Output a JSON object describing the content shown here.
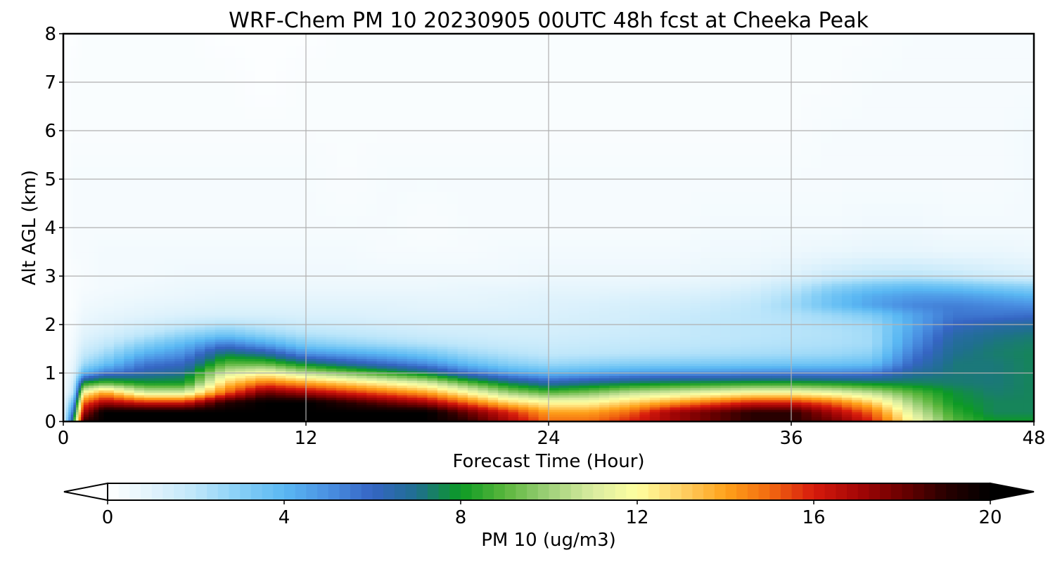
{
  "chart_data": {
    "type": "heatmap",
    "title": "WRF-Chem PM 10  20230905 00UTC 48h fcst at Cheeka Peak",
    "xlabel": "Forecast Time (Hour)",
    "ylabel": "Alt AGL (km)",
    "xlim": [
      0,
      48
    ],
    "ylim": [
      0,
      8
    ],
    "xticks": [
      0,
      12,
      24,
      36,
      48
    ],
    "yticks": [
      0,
      1,
      2,
      3,
      4,
      5,
      6,
      7,
      8
    ],
    "grid": true,
    "colorbar": {
      "label": "PM 10  (ug/m3)",
      "min": 0,
      "max": 20,
      "ticks": [
        0,
        4,
        8,
        12,
        16,
        20
      ],
      "extend": "both",
      "colors": [
        "#ffffff",
        "#e1f3fc",
        "#bde6fa",
        "#86cff6",
        "#5ab8f3",
        "#4a90e2",
        "#3565c3",
        "#1f6f8f",
        "#0c9a24",
        "#5ab63c",
        "#9fd07a",
        "#d9eca0",
        "#ffffa0",
        "#ffd166",
        "#ffa21a",
        "#f26a10",
        "#d61a0c",
        "#a50606",
        "#6b0000",
        "#280000",
        "#000000"
      ]
    },
    "x": [
      0,
      0.5,
      1,
      2,
      4,
      6,
      8,
      10,
      12,
      14,
      16,
      18,
      20,
      22,
      24,
      26,
      28,
      30,
      32,
      34,
      36,
      38,
      40,
      42,
      44,
      46,
      48
    ],
    "y": [
      0,
      0.2,
      0.4,
      0.6,
      0.8,
      1,
      1.2,
      1.4,
      1.6,
      1.8,
      2,
      2.2,
      2.4,
      2.6,
      2.8,
      3,
      3.5,
      4,
      5,
      6,
      7,
      8
    ],
    "z": [
      [
        0.5,
        8,
        19,
        20,
        20,
        20,
        20,
        20,
        20,
        20,
        20,
        20,
        19,
        17,
        15,
        15,
        16,
        17,
        18,
        19,
        19,
        18,
        16,
        12,
        9,
        8,
        8
      ],
      [
        0.5,
        6,
        17,
        20,
        20,
        20,
        20,
        20,
        20,
        20,
        20,
        20,
        18,
        16,
        14,
        14,
        15,
        17,
        18,
        19,
        19,
        17,
        15,
        11,
        8.5,
        7.5,
        7.5
      ],
      [
        0.4,
        4,
        15,
        17,
        16,
        16,
        19,
        20,
        20,
        19,
        18,
        17,
        15,
        13,
        12,
        12,
        13,
        14,
        15,
        16,
        16,
        15,
        13,
        10,
        8,
        7.5,
        7.5
      ],
      [
        0.3,
        2,
        12,
        14,
        11,
        11,
        15,
        18,
        17,
        16,
        15,
        14,
        12,
        10,
        9,
        9.5,
        10.5,
        11,
        11.5,
        12,
        12,
        11.5,
        10.5,
        9,
        7.8,
        7.3,
        7.5
      ],
      [
        0.3,
        1.5,
        8,
        9,
        8,
        8,
        13,
        15,
        14,
        13,
        12,
        11,
        9,
        7.5,
        6.5,
        7,
        7.5,
        7.8,
        8,
        8.2,
        8.2,
        8,
        7.7,
        7.5,
        7.3,
        7.2,
        7.5
      ],
      [
        0.2,
        1,
        4,
        5.5,
        6.5,
        7,
        11,
        12,
        10.5,
        9.5,
        8.5,
        7.5,
        5.8,
        4.6,
        4,
        4.3,
        4.7,
        4.9,
        5,
        5.2,
        5.3,
        5.3,
        5.5,
        6.8,
        7.2,
        7.2,
        7.5
      ],
      [
        0.2,
        0.8,
        2.5,
        3.5,
        5.5,
        6,
        9,
        9,
        7.6,
        6.6,
        5.8,
        5,
        3.8,
        3,
        2.6,
        2.8,
        3,
        3.1,
        3.2,
        3.3,
        3.4,
        3.5,
        3.7,
        6,
        7.2,
        7.2,
        7.5
      ],
      [
        0.1,
        0.6,
        1.8,
        2.5,
        4.2,
        5,
        7.5,
        6.8,
        5,
        4.5,
        4,
        3.4,
        2.6,
        2.2,
        1.9,
        2,
        2.1,
        2.2,
        2.3,
        2.4,
        2.5,
        2.6,
        2.9,
        5.5,
        7,
        7.3,
        7.5
      ],
      [
        0.1,
        0.5,
        1.3,
        1.8,
        3,
        4,
        5.5,
        4.5,
        3.2,
        2.8,
        2.5,
        2.2,
        1.9,
        1.7,
        1.6,
        1.7,
        1.8,
        1.9,
        2,
        2.1,
        2.2,
        2.3,
        2.5,
        5,
        6.8,
        7.2,
        7.4
      ],
      [
        0.1,
        0.4,
        1,
        1.3,
        2,
        2.8,
        3.5,
        2.8,
        2.2,
        2,
        1.8,
        1.6,
        1.5,
        1.4,
        1.4,
        1.5,
        1.6,
        1.7,
        1.9,
        2,
        2.1,
        2.2,
        2.5,
        4.7,
        6.5,
        7,
        7.2
      ],
      [
        0.1,
        0.3,
        0.8,
        1,
        1.4,
        1.8,
        2.2,
        1.9,
        1.6,
        1.5,
        1.4,
        1.3,
        1.3,
        1.3,
        1.3,
        1.4,
        1.5,
        1.7,
        1.9,
        2,
        2.1,
        2.3,
        2.6,
        4.4,
        6,
        6.5,
        6.8
      ],
      [
        0.1,
        0.3,
        0.6,
        0.8,
        1,
        1.2,
        1.3,
        1.3,
        1.2,
        1.2,
        1.1,
        1.1,
        1.1,
        1.1,
        1.2,
        1.3,
        1.4,
        1.6,
        1.8,
        2,
        2.2,
        2.6,
        3.2,
        4.5,
        5.6,
        5.6,
        5.8
      ],
      [
        0.1,
        0.2,
        0.5,
        0.6,
        0.8,
        0.9,
        1,
        1,
        1,
        1,
        1,
        0.9,
        0.9,
        1,
        1.1,
        1.2,
        1.3,
        1.4,
        1.6,
        1.9,
        2.5,
        3.6,
        4.5,
        5.2,
        5.4,
        5.2,
        5
      ],
      [
        0.1,
        0.2,
        0.4,
        0.5,
        0.6,
        0.7,
        0.8,
        0.8,
        0.8,
        0.8,
        0.8,
        0.8,
        0.8,
        0.9,
        1,
        1,
        1.1,
        1.2,
        1.3,
        1.6,
        2.3,
        3.5,
        4.3,
        4.7,
        4.7,
        4.4,
        4
      ],
      [
        0.1,
        0.2,
        0.3,
        0.4,
        0.5,
        0.6,
        0.6,
        0.6,
        0.6,
        0.6,
        0.6,
        0.6,
        0.7,
        0.7,
        0.8,
        0.8,
        0.8,
        0.9,
        1,
        1.2,
        1.8,
        2.8,
        3.4,
        3.7,
        3.5,
        3.1,
        2.8
      ],
      [
        0.1,
        0.2,
        0.3,
        0.4,
        0.4,
        0.5,
        0.5,
        0.5,
        0.5,
        0.5,
        0.5,
        0.5,
        0.5,
        0.5,
        0.6,
        0.6,
        0.6,
        0.6,
        0.7,
        0.8,
        1.1,
        1.6,
        1.9,
        2,
        1.8,
        1.5,
        1.3
      ],
      [
        0.1,
        0.3,
        0.3,
        0.4,
        0.4,
        0.4,
        0.4,
        0.4,
        0.4,
        0.4,
        0.3,
        0.3,
        0.3,
        0.4,
        0.4,
        0.4,
        0.4,
        0.4,
        0.5,
        0.5,
        0.6,
        0.7,
        0.8,
        0.8,
        0.7,
        0.7,
        0.6
      ],
      [
        0.1,
        0.3,
        0.3,
        0.3,
        0.3,
        0.3,
        0.3,
        0.3,
        0.3,
        0.3,
        0.3,
        0.2,
        0.3,
        0.3,
        0.3,
        0.3,
        0.3,
        0.3,
        0.4,
        0.4,
        0.4,
        0.4,
        0.5,
        0.5,
        0.4,
        0.4,
        0.4
      ],
      [
        0.1,
        0.3,
        0.3,
        0.3,
        0.3,
        0.3,
        0.3,
        0.3,
        0.3,
        0.2,
        0.3,
        0.3,
        0.3,
        0.3,
        0.3,
        0.3,
        0.3,
        0.3,
        0.3,
        0.3,
        0.3,
        0.3,
        0.3,
        0.3,
        0.3,
        0.3,
        0.4
      ],
      [
        0.1,
        0.2,
        0.2,
        0.2,
        0.2,
        0.2,
        0.2,
        0.2,
        0.2,
        0.2,
        0.2,
        0.2,
        0.2,
        0.2,
        0.2,
        0.2,
        0.2,
        0.2,
        0.2,
        0.2,
        0.2,
        0.3,
        0.3,
        0.3,
        0.3,
        0.3,
        0.4
      ],
      [
        0.1,
        0.2,
        0.2,
        0.2,
        0.2,
        0.2,
        0.2,
        0.1,
        0.2,
        0.2,
        0.2,
        0.2,
        0.2,
        0.2,
        0.2,
        0.2,
        0.2,
        0.2,
        0.2,
        0.2,
        0.2,
        0.2,
        0.3,
        0.3,
        0.3,
        0.3,
        0.3
      ],
      [
        0.1,
        0.1,
        0.2,
        0.2,
        0.2,
        0.2,
        0.1,
        0.1,
        0.1,
        0.2,
        0.2,
        0.2,
        0.2,
        0.2,
        0.2,
        0.2,
        0.2,
        0.2,
        0.2,
        0.2,
        0.2,
        0.2,
        0.2,
        0.3,
        0.3,
        0.3,
        0.3
      ]
    ]
  }
}
